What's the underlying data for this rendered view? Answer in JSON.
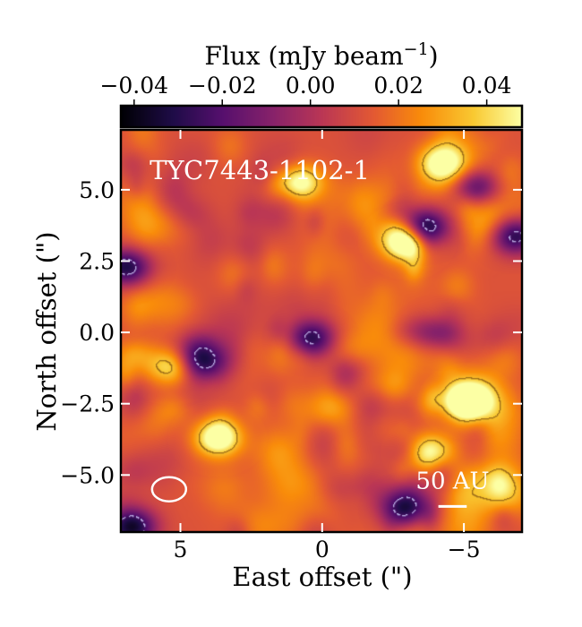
{
  "chart_data": {
    "type": "heatmap",
    "title": "TYC7443-1102-1",
    "xlabel": "East offset (\")",
    "ylabel": "North offset (\")",
    "xlim": [
      7.1,
      -7.05
    ],
    "ylim": [
      -7.0,
      7.1
    ],
    "xticks": [
      5,
      0,
      -5
    ],
    "xtick_labels": [
      "5",
      "0",
      "−5"
    ],
    "yticks": [
      5.0,
      2.5,
      0.0,
      -2.5,
      -5.0
    ],
    "ytick_labels": [
      "5.0",
      "2.5",
      "0.0",
      "−2.5",
      "−5.0"
    ],
    "colorbar": {
      "label": "Flux (mJy beam",
      "label_exp": "−1",
      "label_close": ")",
      "range": [
        -0.043,
        0.048
      ],
      "ticks": [
        -0.04,
        -0.02,
        0.0,
        0.02,
        0.04
      ],
      "tick_labels": [
        "−0.04",
        "−0.02",
        "0.00",
        "0.02",
        "0.04"
      ],
      "colormap": "inferno"
    },
    "features": [
      {
        "x": -3.0,
        "y": 3.2,
        "flux": 0.045
      },
      {
        "x": -5.1,
        "y": -2.4,
        "flux": 0.05
      },
      {
        "x": 3.7,
        "y": -3.7,
        "flux": 0.04
      },
      {
        "x": -3.8,
        "y": -4.2,
        "flux": 0.035
      },
      {
        "x": 5.3,
        "y": -1.2,
        "flux": 0.032
      },
      {
        "x": 0.8,
        "y": 5.3,
        "flux": 0.03
      },
      {
        "x": -4.2,
        "y": 6.0,
        "flux": 0.03
      },
      {
        "x": -3.6,
        "y": 3.7,
        "flux": -0.045
      },
      {
        "x": -5.3,
        "y": 5.1,
        "flux": -0.04
      },
      {
        "x": 0.4,
        "y": -0.2,
        "flux": -0.04
      },
      {
        "x": -3.0,
        "y": -6.2,
        "flux": -0.045
      },
      {
        "x": 6.9,
        "y": 2.3,
        "flux": -0.04
      },
      {
        "x": -6.8,
        "y": 3.4,
        "flux": -0.04
      },
      {
        "x": 4.3,
        "y": -1.0,
        "flux": -0.03
      },
      {
        "x": 6.7,
        "y": -6.8,
        "flux": -0.04
      },
      {
        "x": -4.1,
        "y": 0.0,
        "flux": -0.03
      }
    ],
    "beam": {
      "x": 5.4,
      "y": -5.5,
      "major": 1.2,
      "minor": 0.85
    },
    "scale_bar": {
      "label": "50 AU",
      "length_arcsec": 1.0
    }
  },
  "colors": {
    "scale": "#ffffff",
    "pos_contour": "#a0701a",
    "neg_contour": "#b8a8e0"
  }
}
